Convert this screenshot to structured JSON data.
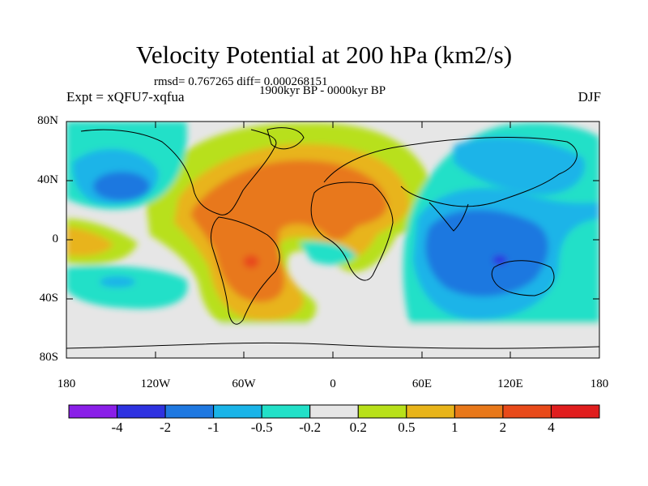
{
  "map": {
    "title": "Velocity Potential at 200 hPa (km2/s)",
    "stats_line": "rmsd= 0.767265 diff= 0.000268151",
    "subtitle": "1900kyr BP - 0000kyr BP",
    "experiment": "Expt = xQFU7-xqfua",
    "season": "DJF",
    "projection": "cylindrical equidistant",
    "lat_labels": [
      "80N",
      "40N",
      "0",
      "40S",
      "80S"
    ],
    "lon_labels": [
      "180",
      "120W",
      "60W",
      "0",
      "60E",
      "120E",
      "180"
    ]
  },
  "colorbar": {
    "levels": [
      "-4",
      "-2",
      "-1",
      "-0.5",
      "-0.2",
      "0.2",
      "0.5",
      "1",
      "2",
      "4"
    ],
    "colors": [
      "#8a1fe8",
      "#2e32e0",
      "#1f78e0",
      "#1ab4e8",
      "#22e0c8",
      "#e6e6e6",
      "#b8e01a",
      "#e8b41a",
      "#e8781a",
      "#e84a1a",
      "#e01e1e"
    ]
  }
}
